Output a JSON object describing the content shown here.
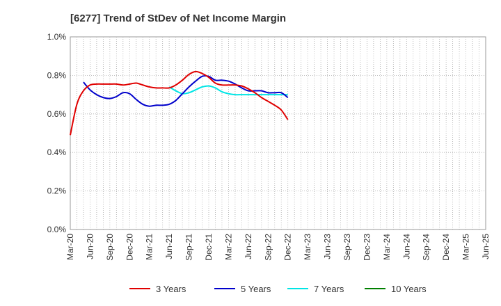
{
  "chart_data": {
    "type": "line",
    "title": "[6277]  Trend of StDev of Net Income Margin",
    "xlabel": "",
    "ylabel": "",
    "ylim": [
      0,
      1.0
    ],
    "y_ticks": [
      "0.0%",
      "0.2%",
      "0.4%",
      "0.6%",
      "0.8%",
      "1.0%"
    ],
    "y_tick_values": [
      0,
      0.2,
      0.4,
      0.6,
      0.8,
      1.0
    ],
    "x_ticks": [
      "Mar-20",
      "Jun-20",
      "Sep-20",
      "Dec-20",
      "Mar-21",
      "Jun-21",
      "Sep-21",
      "Dec-21",
      "Mar-22",
      "Jun-22",
      "Sep-22",
      "Dec-22",
      "Mar-23",
      "Jun-23",
      "Sep-23",
      "Dec-23",
      "Mar-24",
      "Jun-24",
      "Sep-24",
      "Dec-24",
      "Mar-25",
      "Jun-25"
    ],
    "grid": true,
    "legend_position": "bottom",
    "series": [
      {
        "name": "3 Years",
        "color": "#e00000",
        "points": [
          [
            0,
            0.49
          ],
          [
            1,
            0.65
          ],
          [
            2,
            0.72
          ],
          [
            3,
            0.75
          ],
          [
            4,
            0.755
          ],
          [
            5,
            0.755
          ],
          [
            6,
            0.755
          ],
          [
            7,
            0.755
          ],
          [
            8,
            0.75
          ],
          [
            9,
            0.755
          ],
          [
            10,
            0.76
          ],
          [
            11,
            0.75
          ],
          [
            12,
            0.74
          ],
          [
            13,
            0.735
          ],
          [
            14,
            0.735
          ],
          [
            15,
            0.735
          ],
          [
            16,
            0.75
          ],
          [
            17,
            0.775
          ],
          [
            18,
            0.805
          ],
          [
            19,
            0.82
          ],
          [
            20,
            0.81
          ],
          [
            21,
            0.79
          ],
          [
            22,
            0.76
          ],
          [
            23,
            0.75
          ],
          [
            24,
            0.75
          ],
          [
            25,
            0.75
          ],
          [
            26,
            0.745
          ],
          [
            27,
            0.73
          ],
          [
            28,
            0.71
          ],
          [
            29,
            0.685
          ],
          [
            30,
            0.665
          ],
          [
            31,
            0.645
          ],
          [
            32,
            0.62
          ],
          [
            33,
            0.57
          ]
        ]
      },
      {
        "name": "5 Years",
        "color": "#0000cc",
        "points": [
          [
            2,
            0.765
          ],
          [
            3,
            0.725
          ],
          [
            4,
            0.7
          ],
          [
            5,
            0.685
          ],
          [
            6,
            0.68
          ],
          [
            7,
            0.69
          ],
          [
            8,
            0.71
          ],
          [
            9,
            0.705
          ],
          [
            10,
            0.675
          ],
          [
            11,
            0.65
          ],
          [
            12,
            0.64
          ],
          [
            13,
            0.645
          ],
          [
            14,
            0.645
          ],
          [
            15,
            0.65
          ],
          [
            16,
            0.67
          ],
          [
            17,
            0.705
          ],
          [
            18,
            0.74
          ],
          [
            19,
            0.77
          ],
          [
            20,
            0.795
          ],
          [
            21,
            0.795
          ],
          [
            22,
            0.775
          ],
          [
            23,
            0.775
          ],
          [
            24,
            0.77
          ],
          [
            25,
            0.755
          ],
          [
            26,
            0.735
          ],
          [
            27,
            0.72
          ],
          [
            28,
            0.72
          ],
          [
            29,
            0.72
          ],
          [
            30,
            0.71
          ],
          [
            31,
            0.71
          ],
          [
            32,
            0.71
          ],
          [
            33,
            0.685
          ]
        ]
      },
      {
        "name": "7 Years",
        "color": "#00e5e5",
        "points": [
          [
            15,
            0.74
          ],
          [
            16,
            0.72
          ],
          [
            17,
            0.705
          ],
          [
            18,
            0.71
          ],
          [
            19,
            0.725
          ],
          [
            20,
            0.74
          ],
          [
            21,
            0.745
          ],
          [
            22,
            0.735
          ],
          [
            23,
            0.715
          ],
          [
            24,
            0.705
          ],
          [
            25,
            0.7
          ],
          [
            26,
            0.7
          ],
          [
            27,
            0.7
          ],
          [
            28,
            0.7
          ],
          [
            29,
            0.7
          ],
          [
            30,
            0.7
          ],
          [
            31,
            0.7
          ],
          [
            32,
            0.7
          ],
          [
            33,
            0.7
          ]
        ]
      },
      {
        "name": "10 Years",
        "color": "#008000",
        "points": []
      }
    ]
  }
}
